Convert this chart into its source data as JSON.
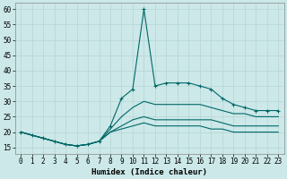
{
  "xlabel": "Humidex (Indice chaleur)",
  "bg_color": "#cce8e8",
  "line_color": "#006868",
  "grid_color": "#b8d8d8",
  "xlim": [
    -0.5,
    23.5
  ],
  "ylim": [
    13,
    62
  ],
  "yticks": [
    15,
    20,
    25,
    30,
    35,
    40,
    45,
    50,
    55,
    60
  ],
  "xticks": [
    0,
    1,
    2,
    3,
    4,
    5,
    6,
    7,
    8,
    9,
    10,
    11,
    12,
    13,
    14,
    15,
    16,
    17,
    18,
    19,
    20,
    21,
    22,
    23
  ],
  "series": [
    {
      "x": [
        0,
        1,
        2,
        3,
        4,
        5,
        6,
        7,
        8,
        9,
        10,
        11,
        12,
        13,
        14,
        15,
        16,
        17,
        18,
        19,
        20,
        21,
        22,
        23
      ],
      "y": [
        20,
        19,
        18,
        17,
        16,
        15.5,
        16,
        17,
        22,
        31,
        34,
        60,
        35,
        36,
        36,
        36,
        35,
        34,
        31,
        29,
        28,
        27,
        27,
        27
      ],
      "marker": true
    },
    {
      "x": [
        0,
        1,
        2,
        3,
        4,
        5,
        6,
        7,
        8,
        9,
        10,
        11,
        12,
        13,
        14,
        15,
        16,
        17,
        18,
        19,
        20,
        21,
        22,
        23
      ],
      "y": [
        20,
        19,
        18,
        17,
        16,
        15.5,
        16,
        17,
        21,
        25,
        28,
        30,
        29,
        29,
        29,
        29,
        29,
        28,
        27,
        26,
        26,
        25,
        25,
        25
      ],
      "marker": false
    },
    {
      "x": [
        0,
        1,
        2,
        3,
        4,
        5,
        6,
        7,
        8,
        9,
        10,
        11,
        12,
        13,
        14,
        15,
        16,
        17,
        18,
        19,
        20,
        21,
        22,
        23
      ],
      "y": [
        20,
        19,
        18,
        17,
        16,
        15.5,
        16,
        17,
        20,
        22,
        24,
        25,
        24,
        24,
        24,
        24,
        24,
        24,
        23,
        22,
        22,
        22,
        22,
        22
      ],
      "marker": false
    },
    {
      "x": [
        0,
        1,
        2,
        3,
        4,
        5,
        6,
        7,
        8,
        9,
        10,
        11,
        12,
        13,
        14,
        15,
        16,
        17,
        18,
        19,
        20,
        21,
        22,
        23
      ],
      "y": [
        20,
        19,
        18,
        17,
        16,
        15.5,
        16,
        17,
        20,
        21,
        22,
        23,
        22,
        22,
        22,
        22,
        22,
        21,
        21,
        20,
        20,
        20,
        20,
        20
      ],
      "marker": false
    }
  ]
}
